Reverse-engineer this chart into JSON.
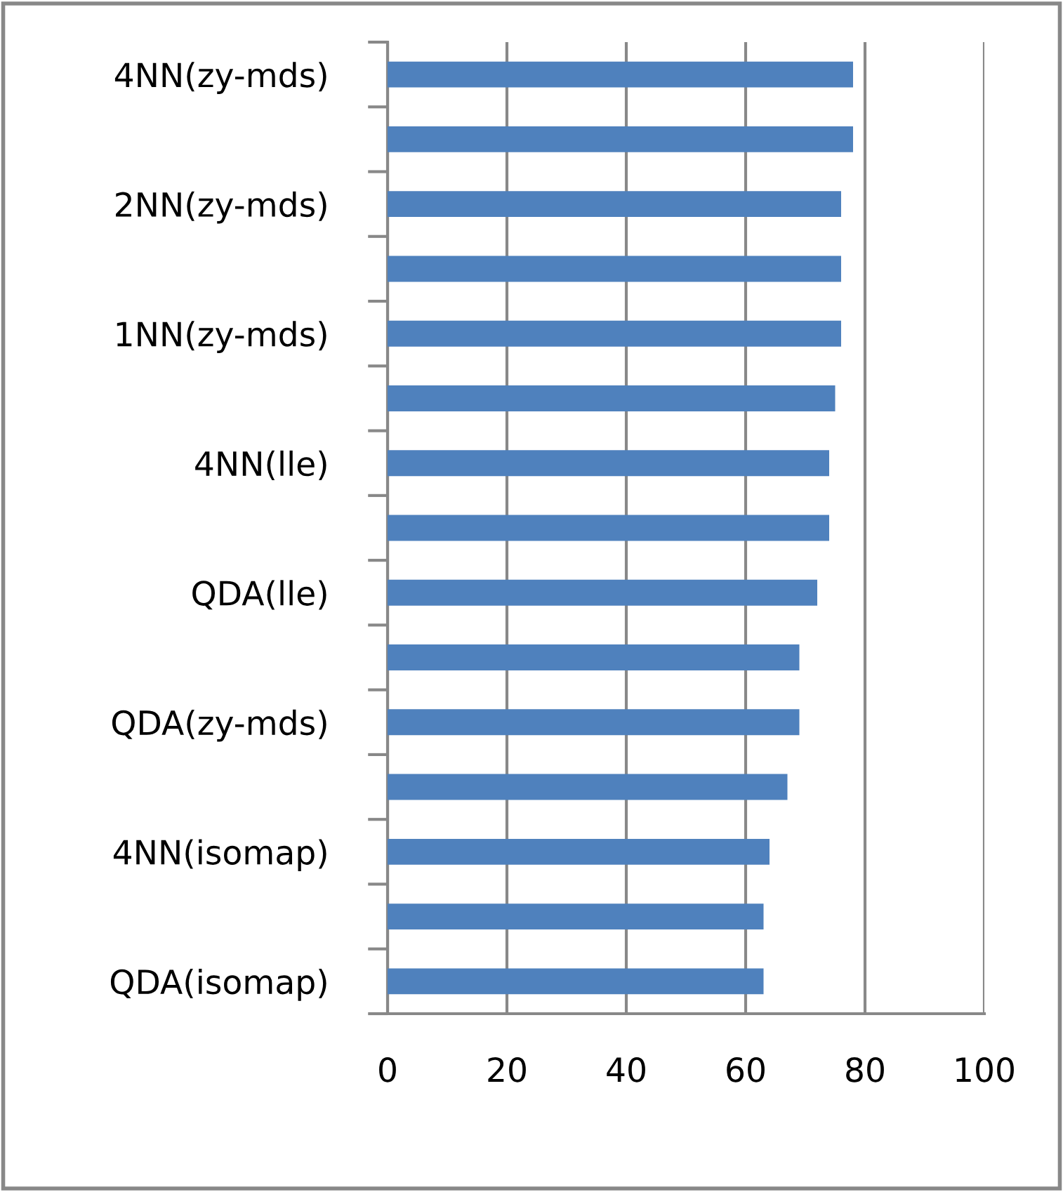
{
  "chart_data": {
    "type": "bar",
    "orientation": "horizontal",
    "categories": [
      "4NN(zy-mds)",
      null,
      "2NN(zy-mds)",
      null,
      "1NN(zy-mds)",
      null,
      "4NN(lle)",
      null,
      "QDA(lle)",
      null,
      "QDA(zy-mds)",
      null,
      "4NN(isomap)",
      null,
      "QDA(isomap)"
    ],
    "values": [
      78,
      78,
      76,
      76,
      76,
      75,
      74,
      74,
      72,
      69,
      69,
      67,
      64,
      63,
      63
    ],
    "color": "#4f81bd",
    "xlim": [
      0,
      100
    ],
    "xticks": [
      0,
      20,
      40,
      60,
      80,
      100
    ],
    "grid": "x"
  }
}
